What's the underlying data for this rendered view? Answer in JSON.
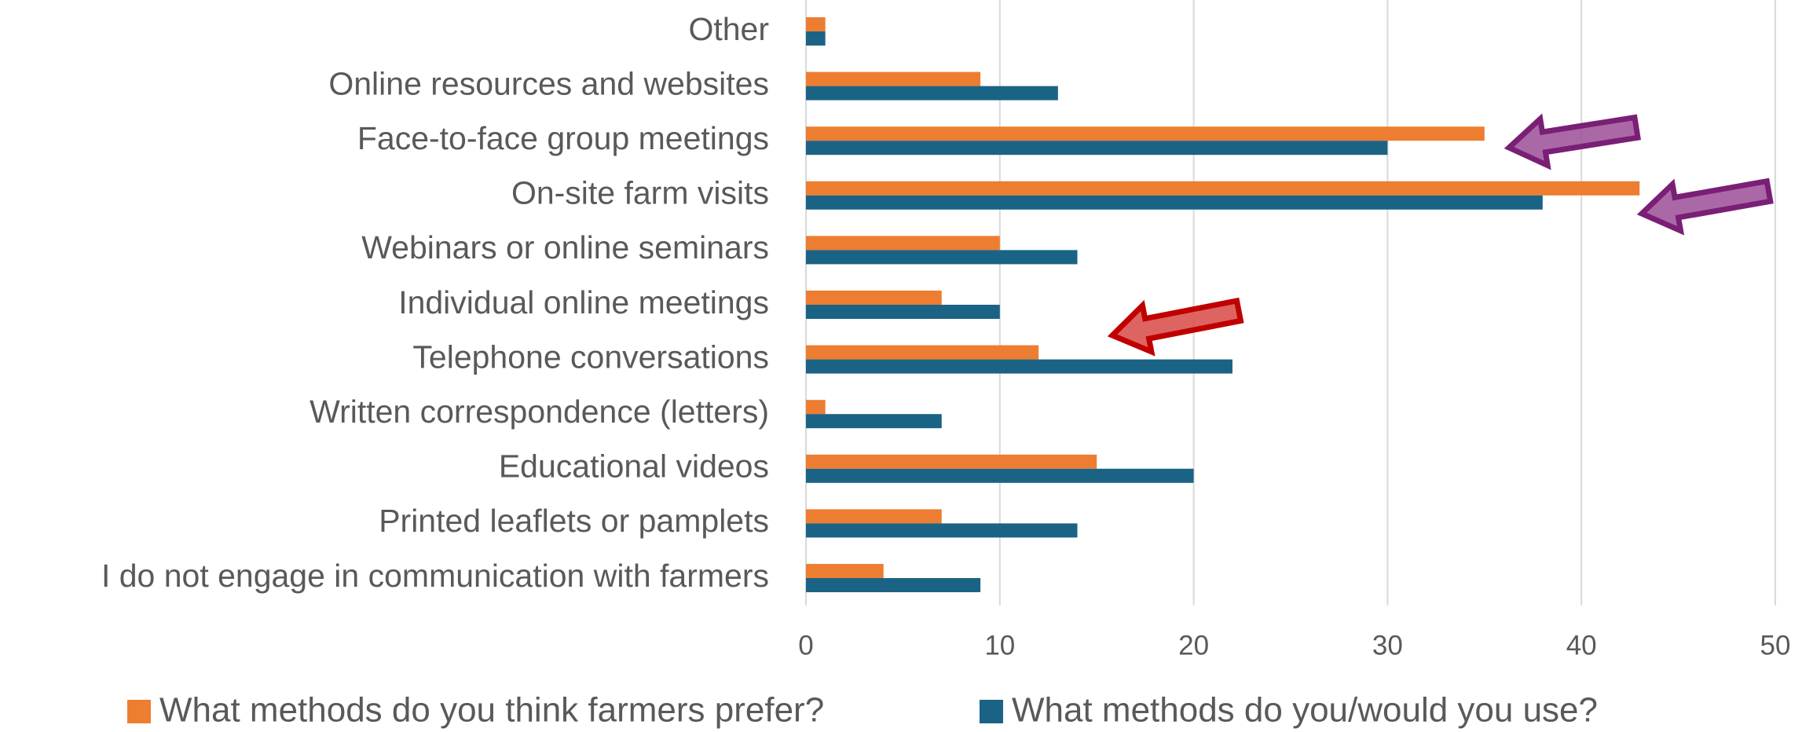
{
  "chart_data": {
    "type": "barh",
    "categories": [
      "Other",
      "Online resources and websites",
      "Face-to-face group meetings",
      "On-site farm visits",
      "Webinars or online seminars",
      "Individual online meetings",
      "Telephone conversations",
      "Written correspondence (letters)",
      "Educational videos",
      "Printed leaflets or pamplets",
      "I do not engage in communication with farmers"
    ],
    "series": [
      {
        "name": "What methods do you think farmers prefer?",
        "color": "#ed7d31",
        "values": [
          1,
          9,
          35,
          43,
          10,
          7,
          12,
          1,
          15,
          7,
          4
        ]
      },
      {
        "name": "What methods do you/would you use?",
        "color": "#1b6385",
        "values": [
          1,
          13,
          30,
          38,
          14,
          10,
          22,
          7,
          20,
          14,
          9
        ]
      }
    ],
    "xlim": [
      0,
      50
    ],
    "xticks": [
      0,
      10,
      20,
      30,
      40,
      50
    ],
    "grid": true,
    "legend": "bottom"
  }
}
